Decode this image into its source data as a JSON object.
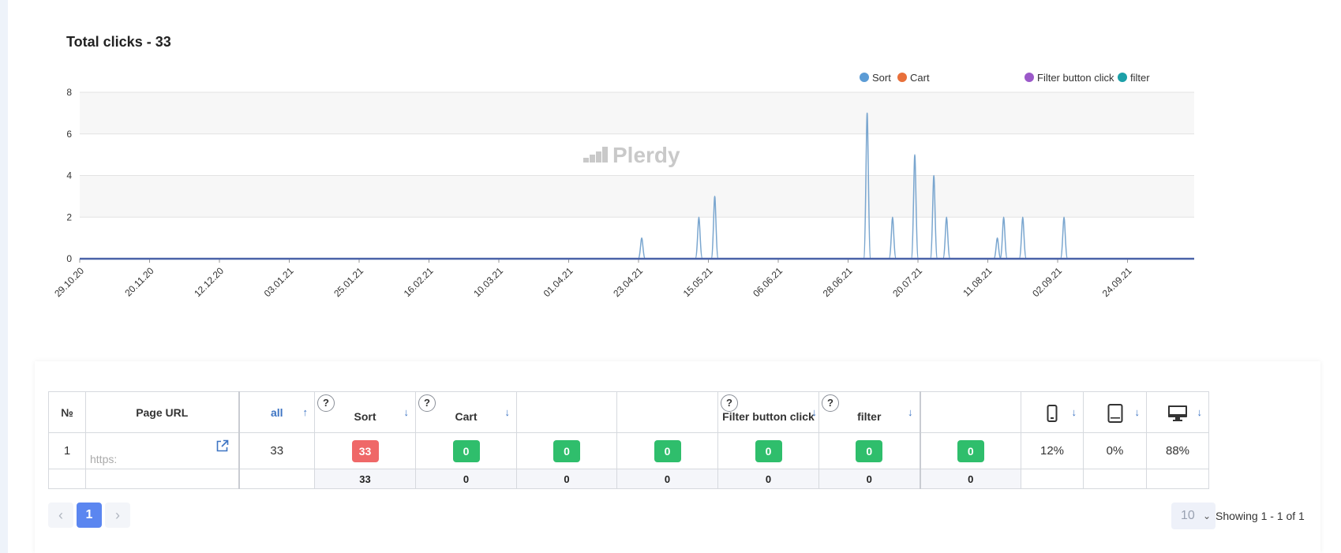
{
  "header": {
    "title": "Total clicks - 33"
  },
  "watermark": "Plerdy",
  "legend": [
    {
      "label": "Sort",
      "color": "#5b9bd5"
    },
    {
      "label": "Cart",
      "color": "#e8703a"
    },
    {
      "label": "Filter button click",
      "color": "#9b59c9"
    },
    {
      "label": "filter",
      "color": "#1ca0a8"
    }
  ],
  "chart_data": {
    "type": "line",
    "ylim": [
      0,
      8
    ],
    "yticks": [
      "0",
      "2",
      "4",
      "6",
      "8"
    ],
    "x_tick_labels": [
      "29.10.20",
      "20.11.20",
      "12.12.20",
      "03.01.21",
      "25.01.21",
      "16.02.21",
      "10.03.21",
      "01.04.21",
      "23.04.21",
      "15.05.21",
      "06.06.21",
      "28.06.21",
      "20.07.21",
      "11.08.21",
      "02.09.21",
      "24.09.21"
    ],
    "x_start": "29.10.20",
    "x_end": "15.10.21",
    "grid": true,
    "legend_position": "top-right",
    "series": [
      {
        "name": "Sort",
        "color": "#7aa6cf",
        "peaks": [
          {
            "x": "24.04.21",
            "y": 1
          },
          {
            "x": "12.05.21",
            "y": 2
          },
          {
            "x": "17.05.21",
            "y": 3
          },
          {
            "x": "04.07.21",
            "y": 7
          },
          {
            "x": "12.07.21",
            "y": 2
          },
          {
            "x": "19.07.21",
            "y": 5
          },
          {
            "x": "25.07.21",
            "y": 4
          },
          {
            "x": "29.07.21",
            "y": 2
          },
          {
            "x": "14.08.21",
            "y": 1
          },
          {
            "x": "16.08.21",
            "y": 2
          },
          {
            "x": "22.08.21",
            "y": 2
          },
          {
            "x": "04.09.21",
            "y": 2
          }
        ]
      }
    ]
  },
  "table": {
    "headers": {
      "num": "№",
      "url": "Page URL",
      "all": "all",
      "sort": "Sort",
      "cart": "Cart",
      "filter_button": "Filter button click",
      "filter": "filter",
      "help": "?",
      "arrow_up": "↑",
      "arrow_down": "↓"
    },
    "row": {
      "num": "1",
      "url": "https:",
      "all": "33",
      "sort": "33",
      "cart": "0",
      "c5": "0",
      "c6": "0",
      "filter_button": "0",
      "filter": "0",
      "c9": "0",
      "mobile": "12%",
      "tablet": "0%",
      "desktop": "88%"
    },
    "totals": {
      "sort": "33",
      "cart": "0",
      "c5": "0",
      "c6": "0",
      "filter_button": "0",
      "filter": "0",
      "c9": "0"
    }
  },
  "pagination": {
    "prev": "‹",
    "page": "1",
    "next": "›",
    "per_page": "10",
    "caret": "⌄",
    "showing": "Showing 1 - 1 of 1"
  }
}
